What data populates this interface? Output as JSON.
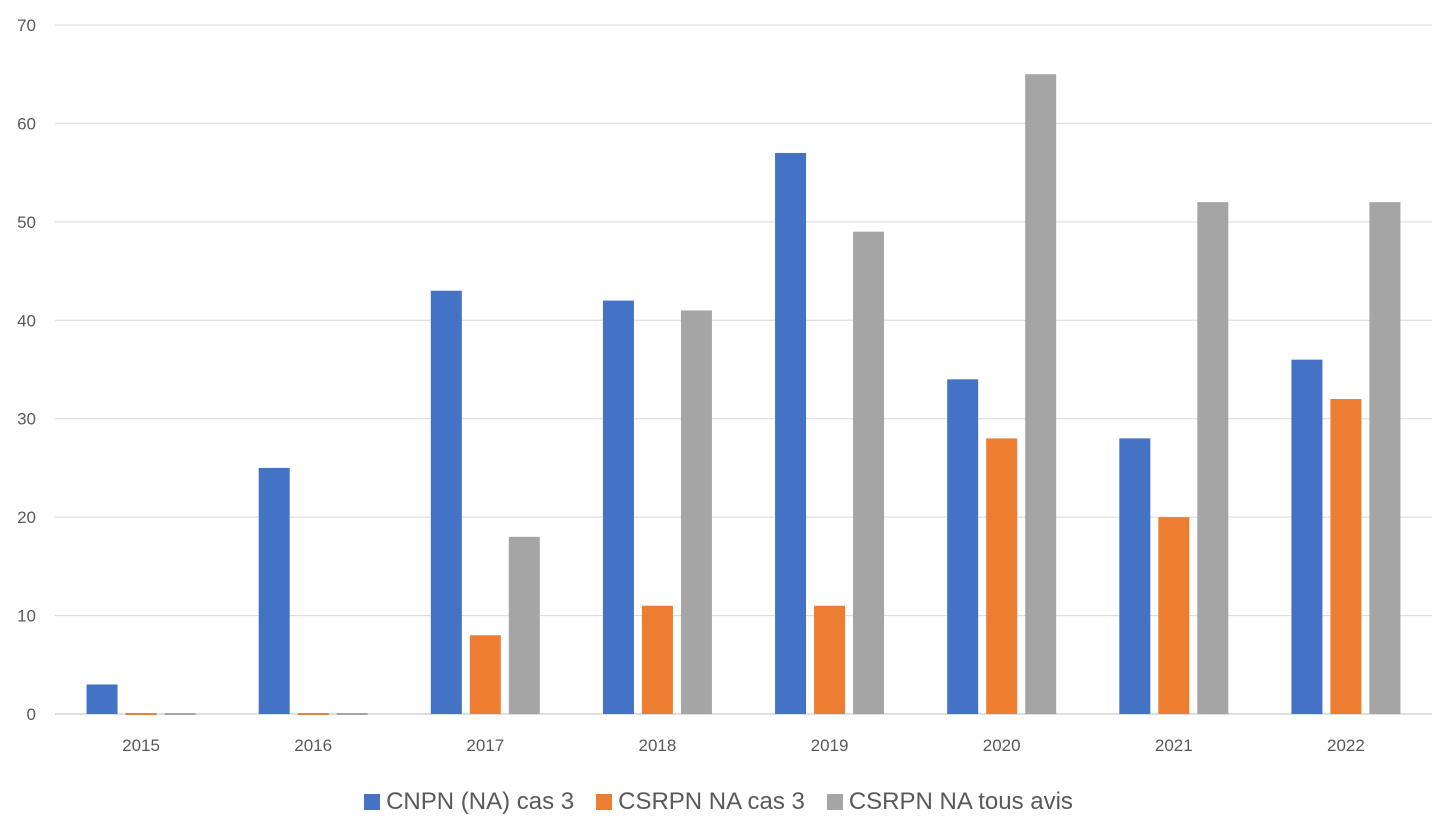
{
  "chart_data": {
    "type": "bar",
    "categories": [
      "2015",
      "2016",
      "2017",
      "2018",
      "2019",
      "2020",
      "2021",
      "2022"
    ],
    "series": [
      {
        "name": "CNPN (NA) cas 3",
        "color": "#4472C4",
        "values": [
          3,
          25,
          43,
          42,
          57,
          34,
          28,
          36
        ]
      },
      {
        "name": "CSRPN NA cas 3",
        "color": "#ED7D31",
        "values": [
          0,
          0,
          8,
          11,
          11,
          28,
          20,
          32
        ]
      },
      {
        "name": "CSRPN NA tous avis",
        "color": "#A5A5A5",
        "values": [
          0,
          0,
          18,
          41,
          49,
          65,
          52,
          52
        ]
      }
    ],
    "ylim": [
      0,
      70
    ],
    "yticks": [
      "0",
      "10",
      "20",
      "30",
      "40",
      "50",
      "60",
      "70"
    ],
    "grid": true,
    "gridline_color": "#D9D9D9",
    "legend_position": "bottom"
  }
}
